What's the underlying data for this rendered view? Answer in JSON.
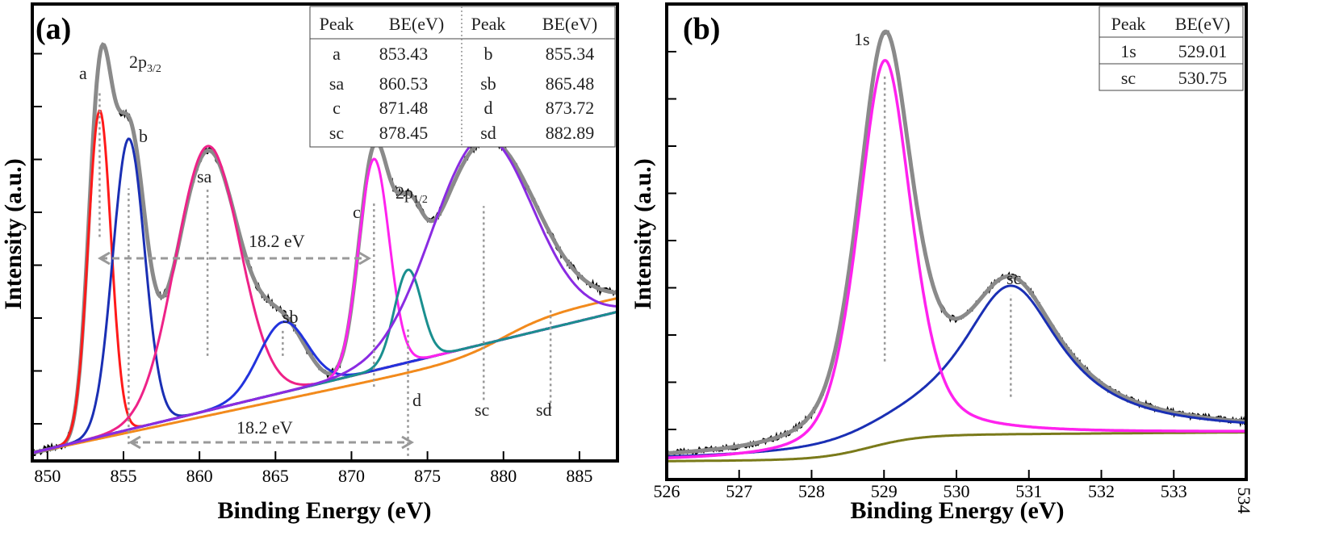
{
  "chart_data": [
    {
      "type": "line",
      "panel_label": "(a)",
      "xlabel": "Binding Energy (eV)",
      "ylabel": "Intensity (a.u.)",
      "xlim": [
        849,
        887.5
      ],
      "ylim": [
        0,
        1
      ],
      "xticks": [
        850,
        855,
        860,
        865,
        870,
        875,
        880,
        885
      ],
      "grid": false,
      "colors": {
        "raw": "#000000",
        "envelope": "#8a8a8a",
        "background": "#f28a1c",
        "a": "#ff1a1a",
        "b": "#1a2fb4",
        "sa": "#ee2288",
        "sb": "#2233dd",
        "c": "#ff22ee",
        "d": "#1a8f8f",
        "broad": "#8a2be2",
        "baseline2": "#2a7a8a"
      },
      "background_curve": {
        "start": [
          849,
          0.0
        ],
        "end": [
          887.5,
          0.32
        ]
      },
      "peaks": [
        {
          "name": "a",
          "center": 853.43,
          "height": 0.74,
          "sigma": 0.75
        },
        {
          "name": "b",
          "center": 855.34,
          "height": 0.66,
          "sigma": 1.05
        },
        {
          "name": "sa",
          "center": 860.53,
          "height": 0.6,
          "sigma": 2.1
        },
        {
          "name": "sb",
          "center": 865.48,
          "height": 0.16,
          "sigma": 1.6
        },
        {
          "name": "c",
          "center": 871.48,
          "height": 0.48,
          "sigma": 1.0
        },
        {
          "name": "d",
          "center": 873.72,
          "height": 0.21,
          "sigma": 0.9
        },
        {
          "name": "broad",
          "center": 878.6,
          "height": 0.47,
          "sigma": 3.3
        }
      ],
      "annotations": {
        "a": "a",
        "b": "b",
        "sa": "sa",
        "sb": "sb",
        "c": "c",
        "d": "d",
        "sc": "sc",
        "sd": "sd",
        "p32_main": "2p",
        "p32_sub": "3/2",
        "p12_main": "2p",
        "p12_sub": "1/2",
        "split_upper": "18.2 eV",
        "split_lower": "18.2 eV"
      },
      "table": {
        "headers": [
          "Peak",
          "BE(eV)",
          "Peak",
          "BE(eV)"
        ],
        "rows": [
          [
            "a",
            "853.43",
            "b",
            "855.34"
          ],
          [
            "sa",
            "860.53",
            "sb",
            "865.48"
          ],
          [
            "c",
            "871.48",
            "d",
            "873.72"
          ],
          [
            "sc",
            "878.45",
            "sd",
            "882.89"
          ]
        ]
      }
    },
    {
      "type": "line",
      "panel_label": "(b)",
      "xlabel": "Binding Energy (eV)",
      "ylabel": "Intensity (a.u.)",
      "xlim": [
        526,
        534
      ],
      "ylim": [
        0,
        1
      ],
      "xticks": [
        526,
        527,
        528,
        529,
        530,
        531,
        532,
        533,
        534
      ],
      "grid": false,
      "colors": {
        "raw": "#000000",
        "envelope": "#8a8a8a",
        "background": "#7a7a1a",
        "1s": "#ff22ee",
        "sc": "#1a2fb4"
      },
      "peaks": [
        {
          "name": "1s",
          "center": 529.01,
          "height": 0.865,
          "sigma": 0.38
        },
        {
          "name": "sc",
          "center": 530.75,
          "height": 0.335,
          "sigma": 0.85
        }
      ],
      "annotations": {
        "1s": "1s",
        "sc": "sc"
      },
      "table": {
        "headers": [
          "Peak",
          "BE(eV)"
        ],
        "rows": [
          [
            "1s",
            "529.01"
          ],
          [
            "sc",
            "530.75"
          ]
        ]
      }
    }
  ]
}
